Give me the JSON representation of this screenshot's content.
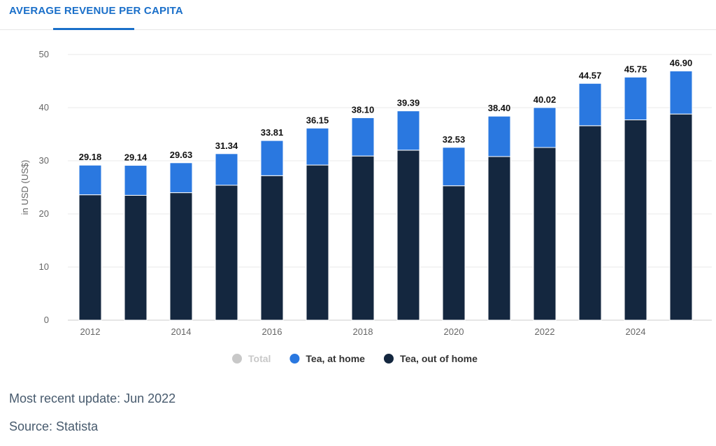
{
  "tab": {
    "label": "AVERAGE REVENUE PER CAPITA"
  },
  "footer": {
    "update_prefix": "Most recent update: ",
    "update_date": "Jun 2022",
    "source_prefix": "Source: ",
    "source_name": "Statista"
  },
  "chart_data": {
    "type": "bar",
    "stacked": true,
    "ylabel": "in USD (US$)",
    "ylim": [
      0,
      50
    ],
    "yticks": [
      0,
      10,
      20,
      30,
      40,
      50
    ],
    "categories": [
      "2012",
      "2013",
      "2014",
      "2015",
      "2016",
      "2017",
      "2018",
      "2019",
      "2020",
      "2021",
      "2022",
      "2023",
      "2024",
      "2025"
    ],
    "xtick_labels": [
      "2012",
      "",
      "2014",
      "",
      "2016",
      "",
      "2018",
      "",
      "2020",
      "",
      "2022",
      "",
      "2024",
      ""
    ],
    "series": [
      {
        "name": "Tea, out of home",
        "color": "#14273f",
        "values": [
          23.6,
          23.5,
          24.0,
          25.4,
          27.2,
          29.2,
          30.9,
          32.0,
          25.3,
          30.8,
          32.5,
          36.6,
          37.7,
          38.8
        ]
      },
      {
        "name": "Tea, at home",
        "color": "#2a78e0",
        "values": [
          5.58,
          5.64,
          5.63,
          5.94,
          6.61,
          6.95,
          7.2,
          7.39,
          7.23,
          7.6,
          7.52,
          7.97,
          8.05,
          8.1
        ]
      }
    ],
    "totals": [
      "29.18",
      "29.14",
      "29.63",
      "31.34",
      "33.81",
      "36.15",
      "38.10",
      "39.39",
      "32.53",
      "38.40",
      "40.02",
      "44.57",
      "45.75",
      "46.90"
    ],
    "legend": [
      {
        "name": "Total",
        "color": "#c8c8c8",
        "muted": true
      },
      {
        "name": "Tea, at home",
        "color": "#2a78e0",
        "muted": false
      },
      {
        "name": "Tea, out of home",
        "color": "#14273f",
        "muted": false
      }
    ],
    "legend_position": "bottom-center",
    "grid": true
  }
}
